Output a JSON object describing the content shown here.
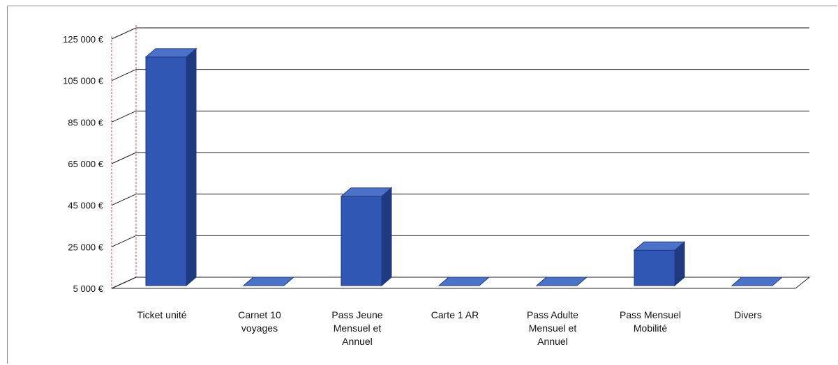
{
  "chart_data": {
    "type": "bar",
    "title": "",
    "xlabel": "",
    "ylabel": "",
    "categories": [
      [
        "Ticket unité"
      ],
      [
        "Carnet 10",
        "voyages"
      ],
      [
        "Pass Jeune",
        "Mensuel et",
        "Annuel"
      ],
      [
        "Carte 1 AR"
      ],
      [
        "Pass Adulte",
        "Mensuel et",
        "Annuel"
      ],
      [
        "Pass Mensuel",
        "Mobilité"
      ],
      [
        "Divers"
      ]
    ],
    "values": [
      115000,
      5000,
      48000,
      4500,
      5000,
      22000,
      5000
    ],
    "ylim": [
      5000,
      125000
    ],
    "yticks": [
      5000,
      25000,
      45000,
      65000,
      85000,
      105000,
      125000
    ],
    "ytick_labels": [
      "5 000 €",
      "25 000 €",
      "45 000 €",
      "65 000 €",
      "85 000 €",
      "105 000 €",
      "125 000 €"
    ],
    "grid": true,
    "style": "3d-column",
    "colors": {
      "bar_front": "#2f57b3",
      "bar_side": "#1f3a80",
      "bar_top": "#4a72c9",
      "grid": "#1c1c1c",
      "wall_edge": "#d04860"
    }
  }
}
